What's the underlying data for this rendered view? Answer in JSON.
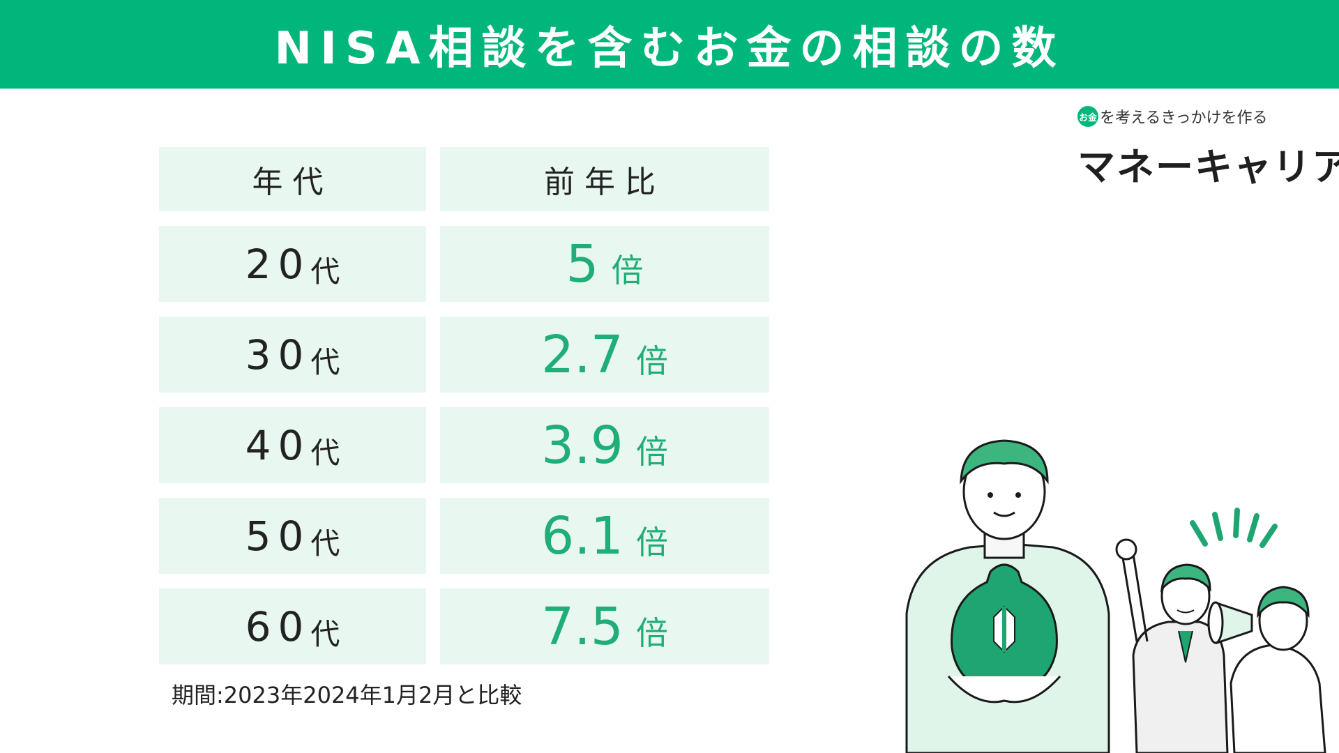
{
  "header": {
    "title": "NISA相談を含むお金の相談の数"
  },
  "logo": {
    "coin_text": "お金",
    "tagline": "を考えるきっかけを作る",
    "name": "マネーキャリア"
  },
  "chart_data": {
    "type": "table",
    "columns": [
      "年代",
      "前年比"
    ],
    "rows": [
      {
        "age_num": "20",
        "age_unit": "代",
        "ratio": 5,
        "ratio_text": "5",
        "unit": "倍"
      },
      {
        "age_num": "30",
        "age_unit": "代",
        "ratio": 2.7,
        "ratio_text": "2.7",
        "unit": "倍"
      },
      {
        "age_num": "40",
        "age_unit": "代",
        "ratio": 3.9,
        "ratio_text": "3.9",
        "unit": "倍"
      },
      {
        "age_num": "50",
        "age_unit": "代",
        "ratio": 6.1,
        "ratio_text": "6.1",
        "unit": "倍"
      },
      {
        "age_num": "60",
        "age_unit": "代",
        "ratio": 7.5,
        "ratio_text": "7.5",
        "unit": "倍"
      }
    ],
    "note": "期間:2023年2024年1月2月と比較"
  },
  "colors": {
    "accent": "#00b67a",
    "value_text": "#1fad78",
    "cell_bg": "#e8f7f0"
  },
  "illustration": {
    "icons": [
      "man-holding-money-bag-icon",
      "cheering-man-icon",
      "woman-with-megaphone-icon"
    ]
  }
}
